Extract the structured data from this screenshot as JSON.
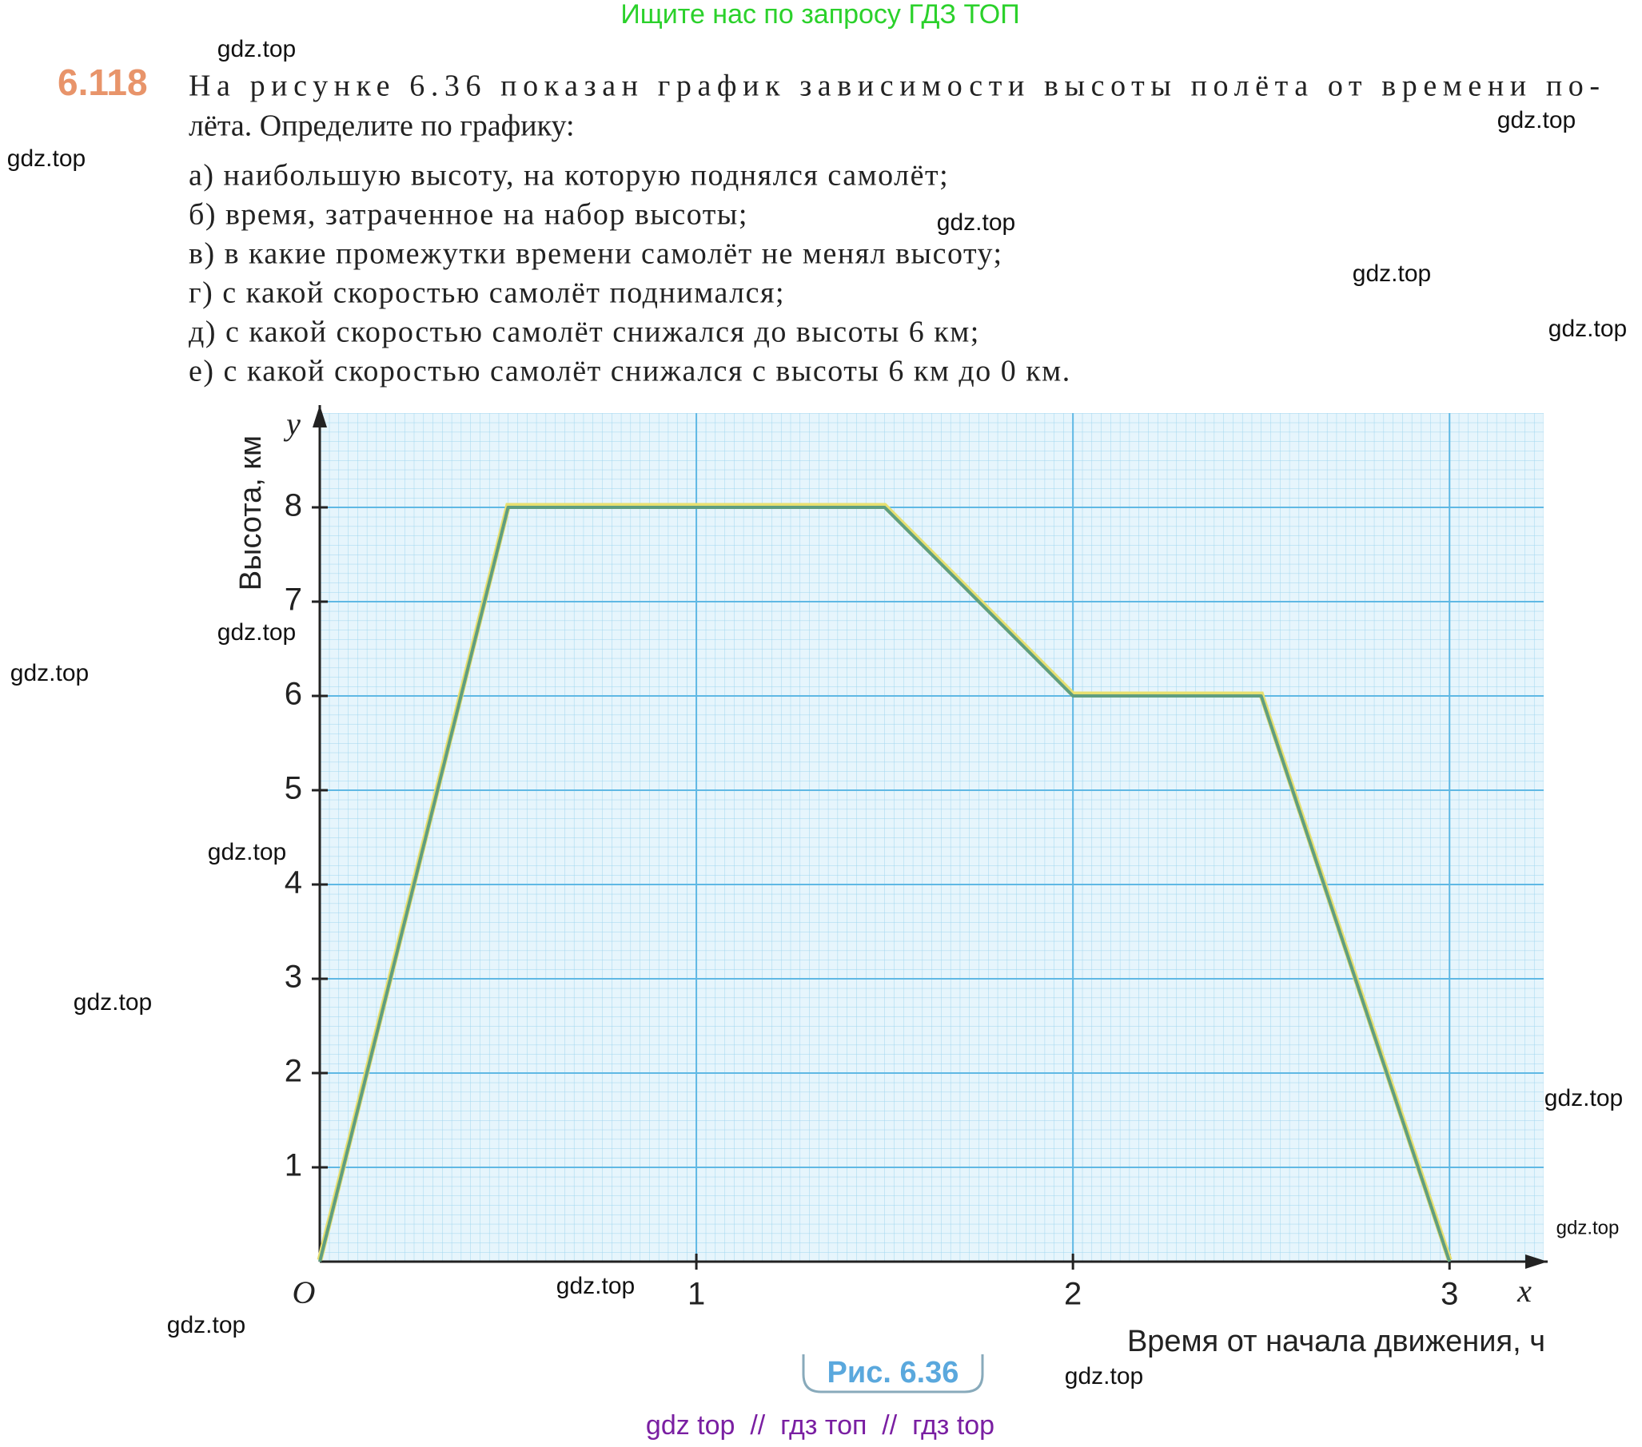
{
  "header": {
    "banner": "Ищите нас по запросу ГДЗ ТОП"
  },
  "problem": {
    "number": "6.118",
    "lines": [
      "На рисунке 6.36 показан график зависимости высоты полёта от времени по-",
      "лёта. Определите по графику:"
    ],
    "items": [
      "а) наибольшую высоту, на которую поднялся самолёт;",
      "б) время, затраченное на набор высоты;",
      "в) в какие промежутки времени самолёт не менял высоту;",
      "г) с какой скоростью самолёт поднимался;",
      "д) с какой скоростью самолёт снижался до высоты 6 км;",
      "е) с какой скоростью самолёт снижался с высоты 6 км до 0 км."
    ]
  },
  "chart_data": {
    "type": "line",
    "x_label": "Время от начала движения, ч",
    "y_label": "Высота, км",
    "origin_label": "O",
    "x_axis_name": "x",
    "y_axis_name": "y",
    "caption": "Рис. 6.36",
    "x": [
      0,
      0.5,
      1.5,
      2,
      2.5,
      3
    ],
    "values": [
      0,
      8,
      8,
      6,
      6,
      0
    ],
    "color": "#5f9e80",
    "xlim": [
      0,
      3.25
    ],
    "ylim": [
      0,
      9
    ],
    "xticks": [
      1,
      2,
      3
    ],
    "yticks": [
      1,
      2,
      3,
      4,
      5,
      6,
      7,
      8
    ],
    "grid": true
  },
  "watermarks": [
    "gdz.top",
    "gdz.top",
    "gdz.top",
    "gdz.top",
    "gdz.top",
    "gdz.top",
    "gdz.top",
    "gdz.top",
    "gdz.top",
    "gdz.top",
    "gdz.top",
    "gdz.top",
    "gdz.top",
    "gdz.top",
    "gdz.top"
  ],
  "footer": {
    "text": "gdz top  //  гдз топ  //  гдз top"
  }
}
